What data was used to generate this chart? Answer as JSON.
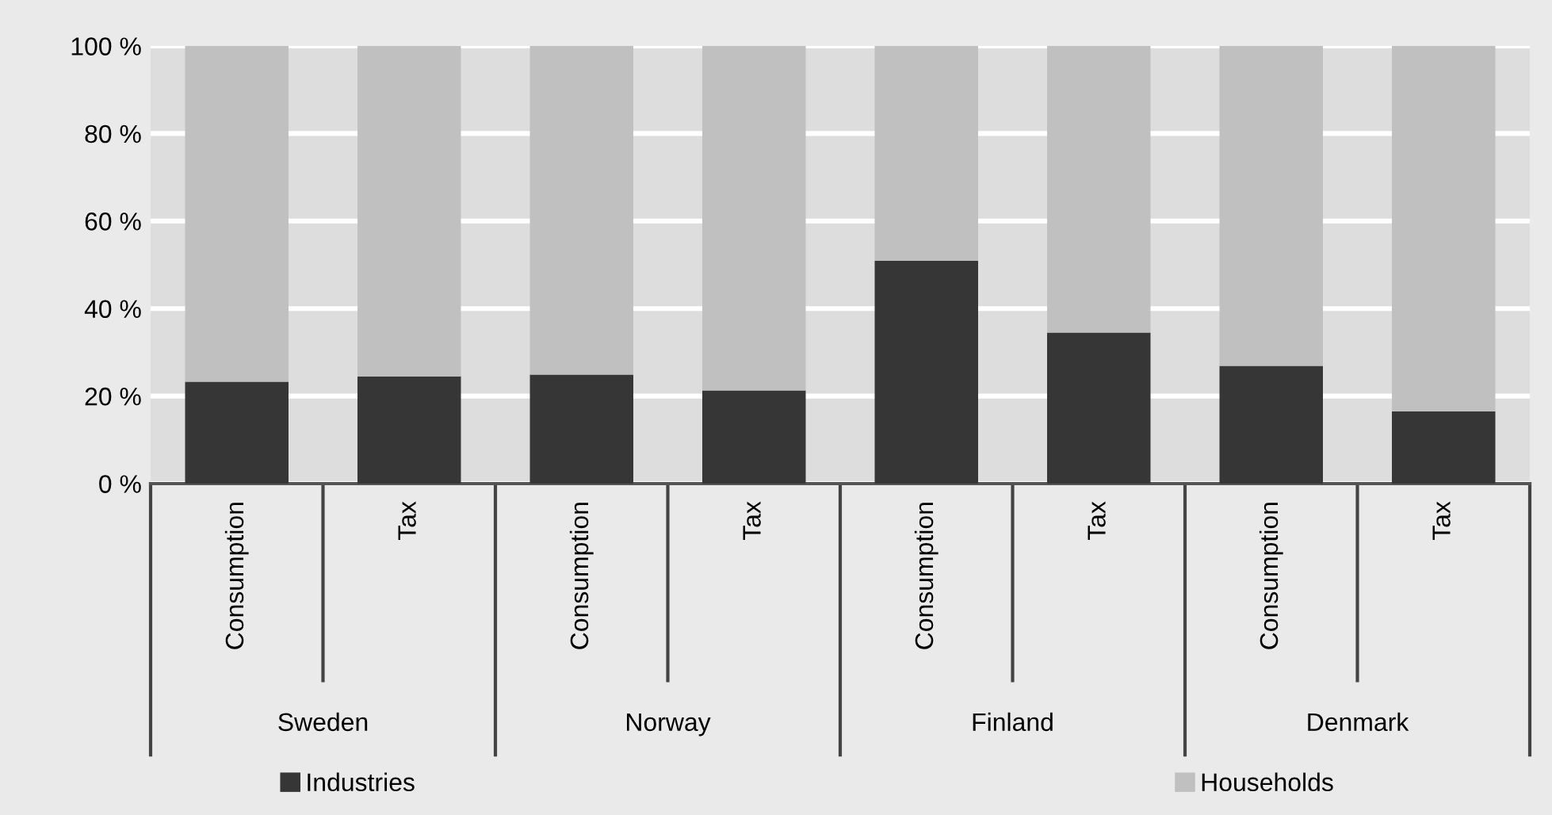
{
  "chart_data": {
    "type": "bar",
    "stacked": true,
    "categories": [
      "Consumption",
      "Tax",
      "Consumption",
      "Tax",
      "Consumption",
      "Tax",
      "Consumption",
      "Tax"
    ],
    "series": [
      {
        "name": "Industries",
        "color": "#363636",
        "values": [
          23.3,
          24.5,
          24.9,
          21.3,
          50.9,
          34.5,
          26.9,
          16.5
        ]
      },
      {
        "name": "Households",
        "color": "#c0c0c0",
        "values": [
          76.7,
          75.5,
          75.1,
          78.7,
          49.1,
          65.5,
          73.1,
          83.5
        ]
      }
    ],
    "annotations": [
      "Sweden",
      "Norway",
      "Finland",
      "Denmark"
    ],
    "ylim": [
      0,
      100
    ],
    "yticks": [
      {
        "value": 0,
        "label": "0 %"
      },
      {
        "value": 20,
        "label": "20 %"
      },
      {
        "value": 40,
        "label": "40 %"
      },
      {
        "value": 60,
        "label": "60 %"
      },
      {
        "value": 80,
        "label": "80 %"
      },
      {
        "value": 100,
        "label": "100 %"
      }
    ],
    "grid": "y",
    "legend": "bottom"
  }
}
